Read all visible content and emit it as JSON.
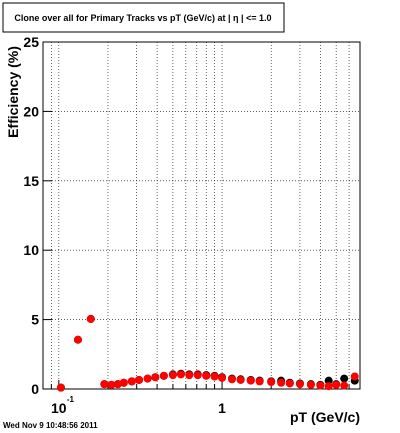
{
  "chart_data": {
    "type": "scatter",
    "title": "Clone  over all for Primary Tracks vs pT (GeV/c) at |  η | <= 1.0",
    "x_label": "pT (GeV/c)",
    "y_label": "Efficiency (%)",
    "footer": "Wed Nov  9 10:48:56 2011",
    "log_x": true,
    "grid": true,
    "xlim": [
      0.08,
      7
    ],
    "ylim": [
      0,
      25
    ],
    "xticks": [
      {
        "value": 0.1,
        "label": "10",
        "exponent": "-1"
      },
      1
    ],
    "xminorticks": [
      0.09,
      0.2,
      0.3,
      0.4,
      0.5,
      0.6,
      0.7,
      0.8,
      0.9,
      2,
      3,
      4,
      5,
      6,
      7
    ],
    "yticks": [
      0,
      5,
      10,
      15,
      20,
      25
    ],
    "x": [
      0.103,
      0.131,
      0.157,
      0.19,
      0.21,
      0.23,
      0.25,
      0.28,
      0.31,
      0.35,
      0.39,
      0.44,
      0.5,
      0.56,
      0.63,
      0.71,
      0.8,
      0.9,
      1.0,
      1.15,
      1.3,
      1.5,
      1.7,
      2.0,
      2.3,
      2.6,
      3.0,
      3.5,
      4.0,
      4.5,
      5.0,
      5.6,
      6.5
    ],
    "series": [
      {
        "color": "#000000",
        "values": [
          0.1,
          3.55,
          5.05,
          0.35,
          0.3,
          0.35,
          0.45,
          0.55,
          0.65,
          0.75,
          0.85,
          0.95,
          1.05,
          1.1,
          1.05,
          1.05,
          1.0,
          0.95,
          0.85,
          0.75,
          0.7,
          0.65,
          0.6,
          0.55,
          0.6,
          0.45,
          0.4,
          0.35,
          0.3,
          0.6,
          0.35,
          0.75,
          0.6
        ]
      },
      {
        "color": "#ff0000",
        "values": [
          0.1,
          3.55,
          5.05,
          0.35,
          0.3,
          0.35,
          0.45,
          0.55,
          0.65,
          0.75,
          0.85,
          0.95,
          1.0,
          1.05,
          1.0,
          1.0,
          0.95,
          0.9,
          0.8,
          0.7,
          0.65,
          0.6,
          0.55,
          0.5,
          0.45,
          0.4,
          0.35,
          0.3,
          0.25,
          0.2,
          0.3,
          0.25,
          0.9
        ]
      }
    ]
  }
}
